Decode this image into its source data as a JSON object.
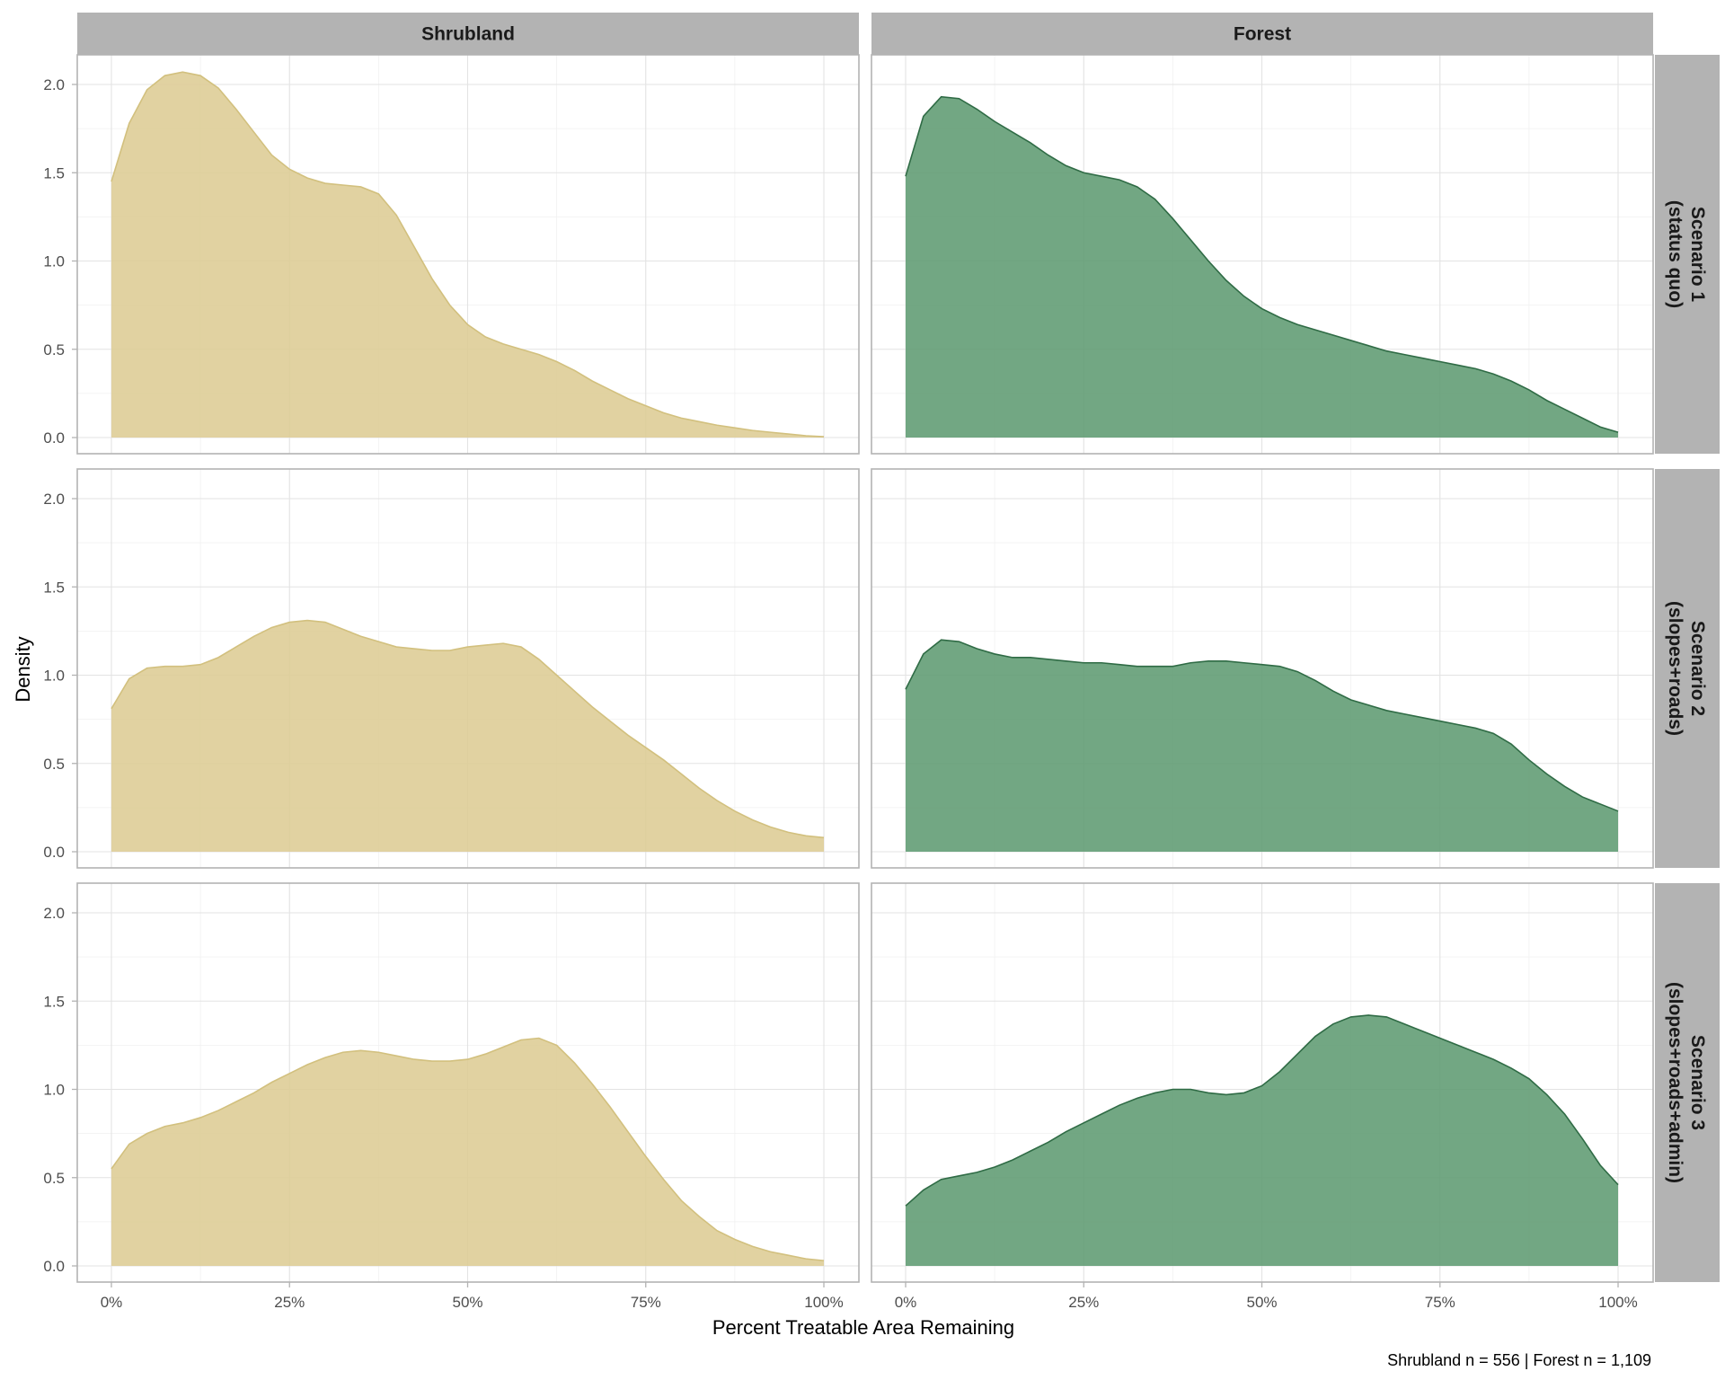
{
  "chart_data": {
    "type": "area",
    "subtype": "faceted-density",
    "xlabel": "Percent Treatable Area Remaining",
    "ylabel": "Density",
    "caption": "Shrubland n = 556 | Forest n = 1,109",
    "xlim": [
      0,
      1
    ],
    "ylim": [
      0,
      2.15
    ],
    "x_ticks": [
      0,
      0.25,
      0.5,
      0.75,
      1.0
    ],
    "x_tick_labels": [
      "0%",
      "25%",
      "50%",
      "75%",
      "100%"
    ],
    "y_ticks": [
      0,
      0.5,
      1.0,
      1.5,
      2.0
    ],
    "y_tick_labels": [
      "0.0",
      "0.5",
      "1.0",
      "1.5",
      "2.0"
    ],
    "grid": true,
    "columns": [
      {
        "label": "Shrubland",
        "fill": "#ddcc94",
        "stroke": "#d2c07e"
      },
      {
        "label": "Forest",
        "fill": "#5e9b72",
        "stroke": "#2f6b45"
      }
    ],
    "rows": [
      {
        "label_line1": "Scenario 1",
        "label_line2": "(status quo)"
      },
      {
        "label_line1": "Scenario 2",
        "label_line2": "(slopes+roads)"
      },
      {
        "label_line1": "Scenario 3",
        "label_line2": "(slopes+roads+admin)"
      }
    ],
    "x": [
      0,
      0.025,
      0.05,
      0.075,
      0.1,
      0.125,
      0.15,
      0.175,
      0.2,
      0.225,
      0.25,
      0.275,
      0.3,
      0.325,
      0.35,
      0.375,
      0.4,
      0.425,
      0.45,
      0.475,
      0.5,
      0.525,
      0.55,
      0.575,
      0.6,
      0.625,
      0.65,
      0.675,
      0.7,
      0.725,
      0.75,
      0.775,
      0.8,
      0.825,
      0.85,
      0.875,
      0.9,
      0.925,
      0.95,
      0.975,
      1.0
    ],
    "series": [
      {
        "name": "Scenario 1 - Shrubland",
        "row": 0,
        "col": 0,
        "values": [
          1.45,
          1.78,
          1.97,
          2.05,
          2.07,
          2.05,
          1.98,
          1.86,
          1.73,
          1.6,
          1.52,
          1.47,
          1.44,
          1.43,
          1.42,
          1.38,
          1.26,
          1.08,
          0.9,
          0.75,
          0.64,
          0.57,
          0.53,
          0.5,
          0.47,
          0.43,
          0.38,
          0.32,
          0.27,
          0.22,
          0.18,
          0.14,
          0.11,
          0.09,
          0.07,
          0.055,
          0.04,
          0.03,
          0.02,
          0.01,
          0.005
        ]
      },
      {
        "name": "Scenario 1 - Forest",
        "row": 0,
        "col": 1,
        "values": [
          1.48,
          1.82,
          1.93,
          1.92,
          1.86,
          1.79,
          1.73,
          1.67,
          1.6,
          1.54,
          1.5,
          1.48,
          1.46,
          1.42,
          1.35,
          1.24,
          1.12,
          1.0,
          0.89,
          0.8,
          0.73,
          0.68,
          0.64,
          0.61,
          0.58,
          0.55,
          0.52,
          0.49,
          0.47,
          0.45,
          0.43,
          0.41,
          0.39,
          0.36,
          0.32,
          0.27,
          0.21,
          0.16,
          0.11,
          0.06,
          0.03
        ]
      },
      {
        "name": "Scenario 2 - Shrubland",
        "row": 1,
        "col": 0,
        "values": [
          0.81,
          0.98,
          1.04,
          1.05,
          1.05,
          1.06,
          1.1,
          1.16,
          1.22,
          1.27,
          1.3,
          1.31,
          1.3,
          1.26,
          1.22,
          1.19,
          1.16,
          1.15,
          1.14,
          1.14,
          1.16,
          1.17,
          1.18,
          1.16,
          1.09,
          1.0,
          0.91,
          0.82,
          0.74,
          0.66,
          0.59,
          0.52,
          0.44,
          0.36,
          0.29,
          0.23,
          0.18,
          0.14,
          0.11,
          0.09,
          0.08
        ]
      },
      {
        "name": "Scenario 2 - Forest",
        "row": 1,
        "col": 1,
        "values": [
          0.92,
          1.12,
          1.2,
          1.19,
          1.15,
          1.12,
          1.1,
          1.1,
          1.09,
          1.08,
          1.07,
          1.07,
          1.06,
          1.05,
          1.05,
          1.05,
          1.07,
          1.08,
          1.08,
          1.07,
          1.06,
          1.05,
          1.02,
          0.97,
          0.91,
          0.86,
          0.83,
          0.8,
          0.78,
          0.76,
          0.74,
          0.72,
          0.7,
          0.67,
          0.61,
          0.52,
          0.44,
          0.37,
          0.31,
          0.27,
          0.23
        ]
      },
      {
        "name": "Scenario 3 - Shrubland",
        "row": 2,
        "col": 0,
        "values": [
          0.55,
          0.69,
          0.75,
          0.79,
          0.81,
          0.84,
          0.88,
          0.93,
          0.98,
          1.04,
          1.09,
          1.14,
          1.18,
          1.21,
          1.22,
          1.21,
          1.19,
          1.17,
          1.16,
          1.16,
          1.17,
          1.2,
          1.24,
          1.28,
          1.29,
          1.25,
          1.15,
          1.03,
          0.9,
          0.76,
          0.62,
          0.49,
          0.37,
          0.28,
          0.2,
          0.15,
          0.11,
          0.08,
          0.06,
          0.04,
          0.03
        ]
      },
      {
        "name": "Scenario 3 - Forest",
        "row": 2,
        "col": 1,
        "values": [
          0.34,
          0.43,
          0.49,
          0.51,
          0.53,
          0.56,
          0.6,
          0.65,
          0.7,
          0.76,
          0.81,
          0.86,
          0.91,
          0.95,
          0.98,
          1.0,
          1.0,
          0.98,
          0.97,
          0.98,
          1.02,
          1.1,
          1.2,
          1.3,
          1.37,
          1.41,
          1.42,
          1.41,
          1.37,
          1.33,
          1.29,
          1.25,
          1.21,
          1.17,
          1.12,
          1.06,
          0.97,
          0.86,
          0.72,
          0.57,
          0.46
        ]
      }
    ]
  }
}
